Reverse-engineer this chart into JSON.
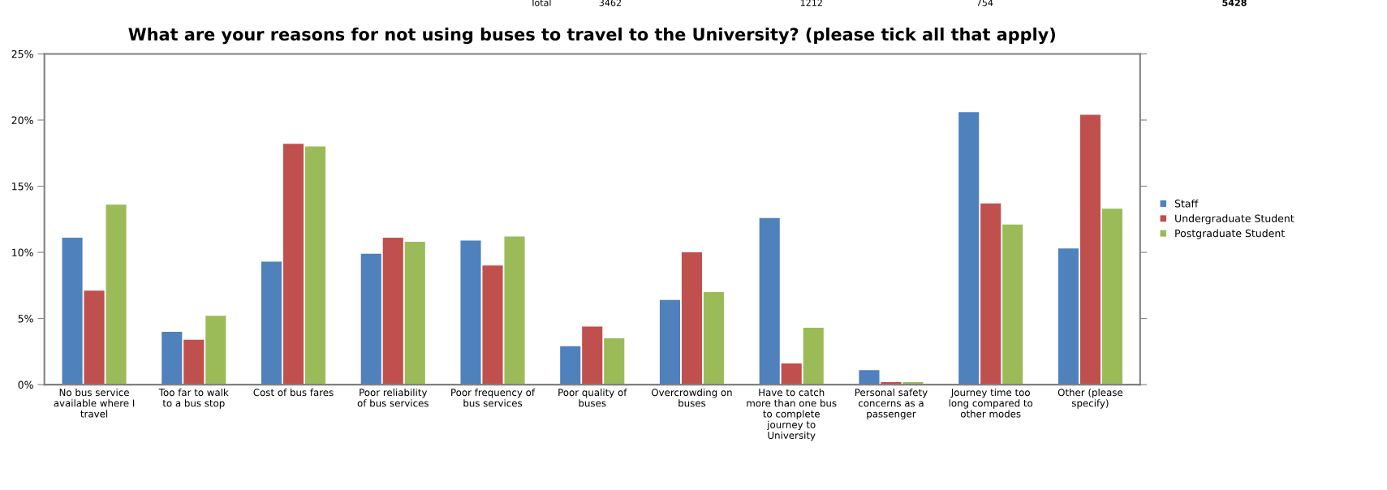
{
  "chart_data": {
    "type": "bar",
    "title": "What are your reasons for not using buses to travel to the University? (please tick all that apply)",
    "categories": [
      "No bus service available where I travel",
      "Too far to walk to a bus stop",
      "Cost of bus fares",
      "Poor reliability of bus services",
      "Poor frequency of bus services",
      "Poor quality of buses",
      "Overcrowding on buses",
      "Have to catch more than one bus to complete journey to University",
      "Personal safety concerns as a passenger",
      "Journey time too long compared to other modes",
      "Other (please specify)"
    ],
    "series": [
      {
        "name": "Staff",
        "color": "#4f81bd",
        "values": [
          11.1,
          4.0,
          9.3,
          9.9,
          10.9,
          2.9,
          6.4,
          12.6,
          1.1,
          20.6,
          10.3
        ]
      },
      {
        "name": "Undergraduate Student",
        "color": "#c0504d",
        "values": [
          7.1,
          3.4,
          18.2,
          11.1,
          9.0,
          4.4,
          10.0,
          1.6,
          0.2,
          13.7,
          20.4
        ]
      },
      {
        "name": "Postgraduate Student",
        "color": "#9bbb59",
        "values": [
          13.6,
          5.2,
          18.0,
          10.8,
          11.2,
          3.5,
          7.0,
          4.3,
          0.2,
          12.1,
          13.3
        ]
      }
    ],
    "ylim": [
      0,
      25
    ],
    "yticks": [
      {
        "value": 0,
        "label": "0%"
      },
      {
        "value": 5,
        "label": "5%"
      },
      {
        "value": 10,
        "label": "10%"
      },
      {
        "value": 15,
        "label": "15%"
      },
      {
        "value": 20,
        "label": "20%"
      },
      {
        "value": 25,
        "label": "25%"
      }
    ],
    "grid": false,
    "legend": "right",
    "annotations": [
      "Total",
      "3462",
      "1212",
      "754",
      "5428"
    ]
  }
}
